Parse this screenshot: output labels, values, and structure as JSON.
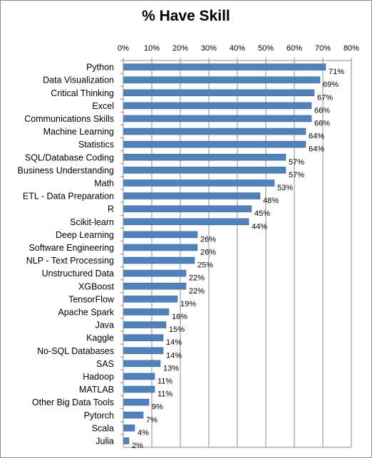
{
  "chart_data": {
    "type": "bar",
    "orientation": "horizontal",
    "title": "% Have Skill",
    "xlabel": "",
    "ylabel": "",
    "xlim": [
      0,
      80
    ],
    "tick_labels": [
      "0%",
      "10%",
      "20%",
      "30%",
      "40%",
      "50%",
      "60%",
      "70%",
      "80%"
    ],
    "grid": true,
    "legend": "none",
    "bar_color": "#4f81bd",
    "categories": [
      "Python",
      "Data Visualization",
      "Critical Thinking",
      "Excel",
      "Communications Skills",
      "Machine Learning",
      "Statistics",
      "SQL/Database Coding",
      "Business Understanding",
      "Math",
      "ETL - Data Preparation",
      "R",
      "Scikit-learn",
      "Deep Learning",
      "Software Engineering",
      "NLP - Text Processing",
      "Unstructured Data",
      "XGBoost",
      "TensorFlow",
      "Apache Spark",
      "Java",
      "Kaggle",
      "No-SQL Databases",
      "SAS",
      "Hadoop",
      "MATLAB",
      "Other Big Data Tools",
      "Pytorch",
      "Scala",
      "Julia"
    ],
    "values": [
      71,
      69,
      67,
      66,
      66,
      64,
      64,
      57,
      57,
      53,
      48,
      45,
      44,
      26,
      26,
      25,
      22,
      22,
      19,
      16,
      15,
      14,
      14,
      13,
      11,
      11,
      9,
      7,
      4,
      2
    ],
    "data_labels": [
      "71%",
      "69%",
      "67%",
      "66%",
      "66%",
      "64%",
      "64%",
      "57%",
      "57%",
      "53%",
      "48%",
      "45%",
      "44%",
      "26%",
      "26%",
      "25%",
      "22%",
      "22%",
      "19%",
      "16%",
      "15%",
      "14%",
      "14%",
      "13%",
      "11%",
      "11%",
      "9%",
      "7%",
      "4%",
      "2%"
    ]
  }
}
